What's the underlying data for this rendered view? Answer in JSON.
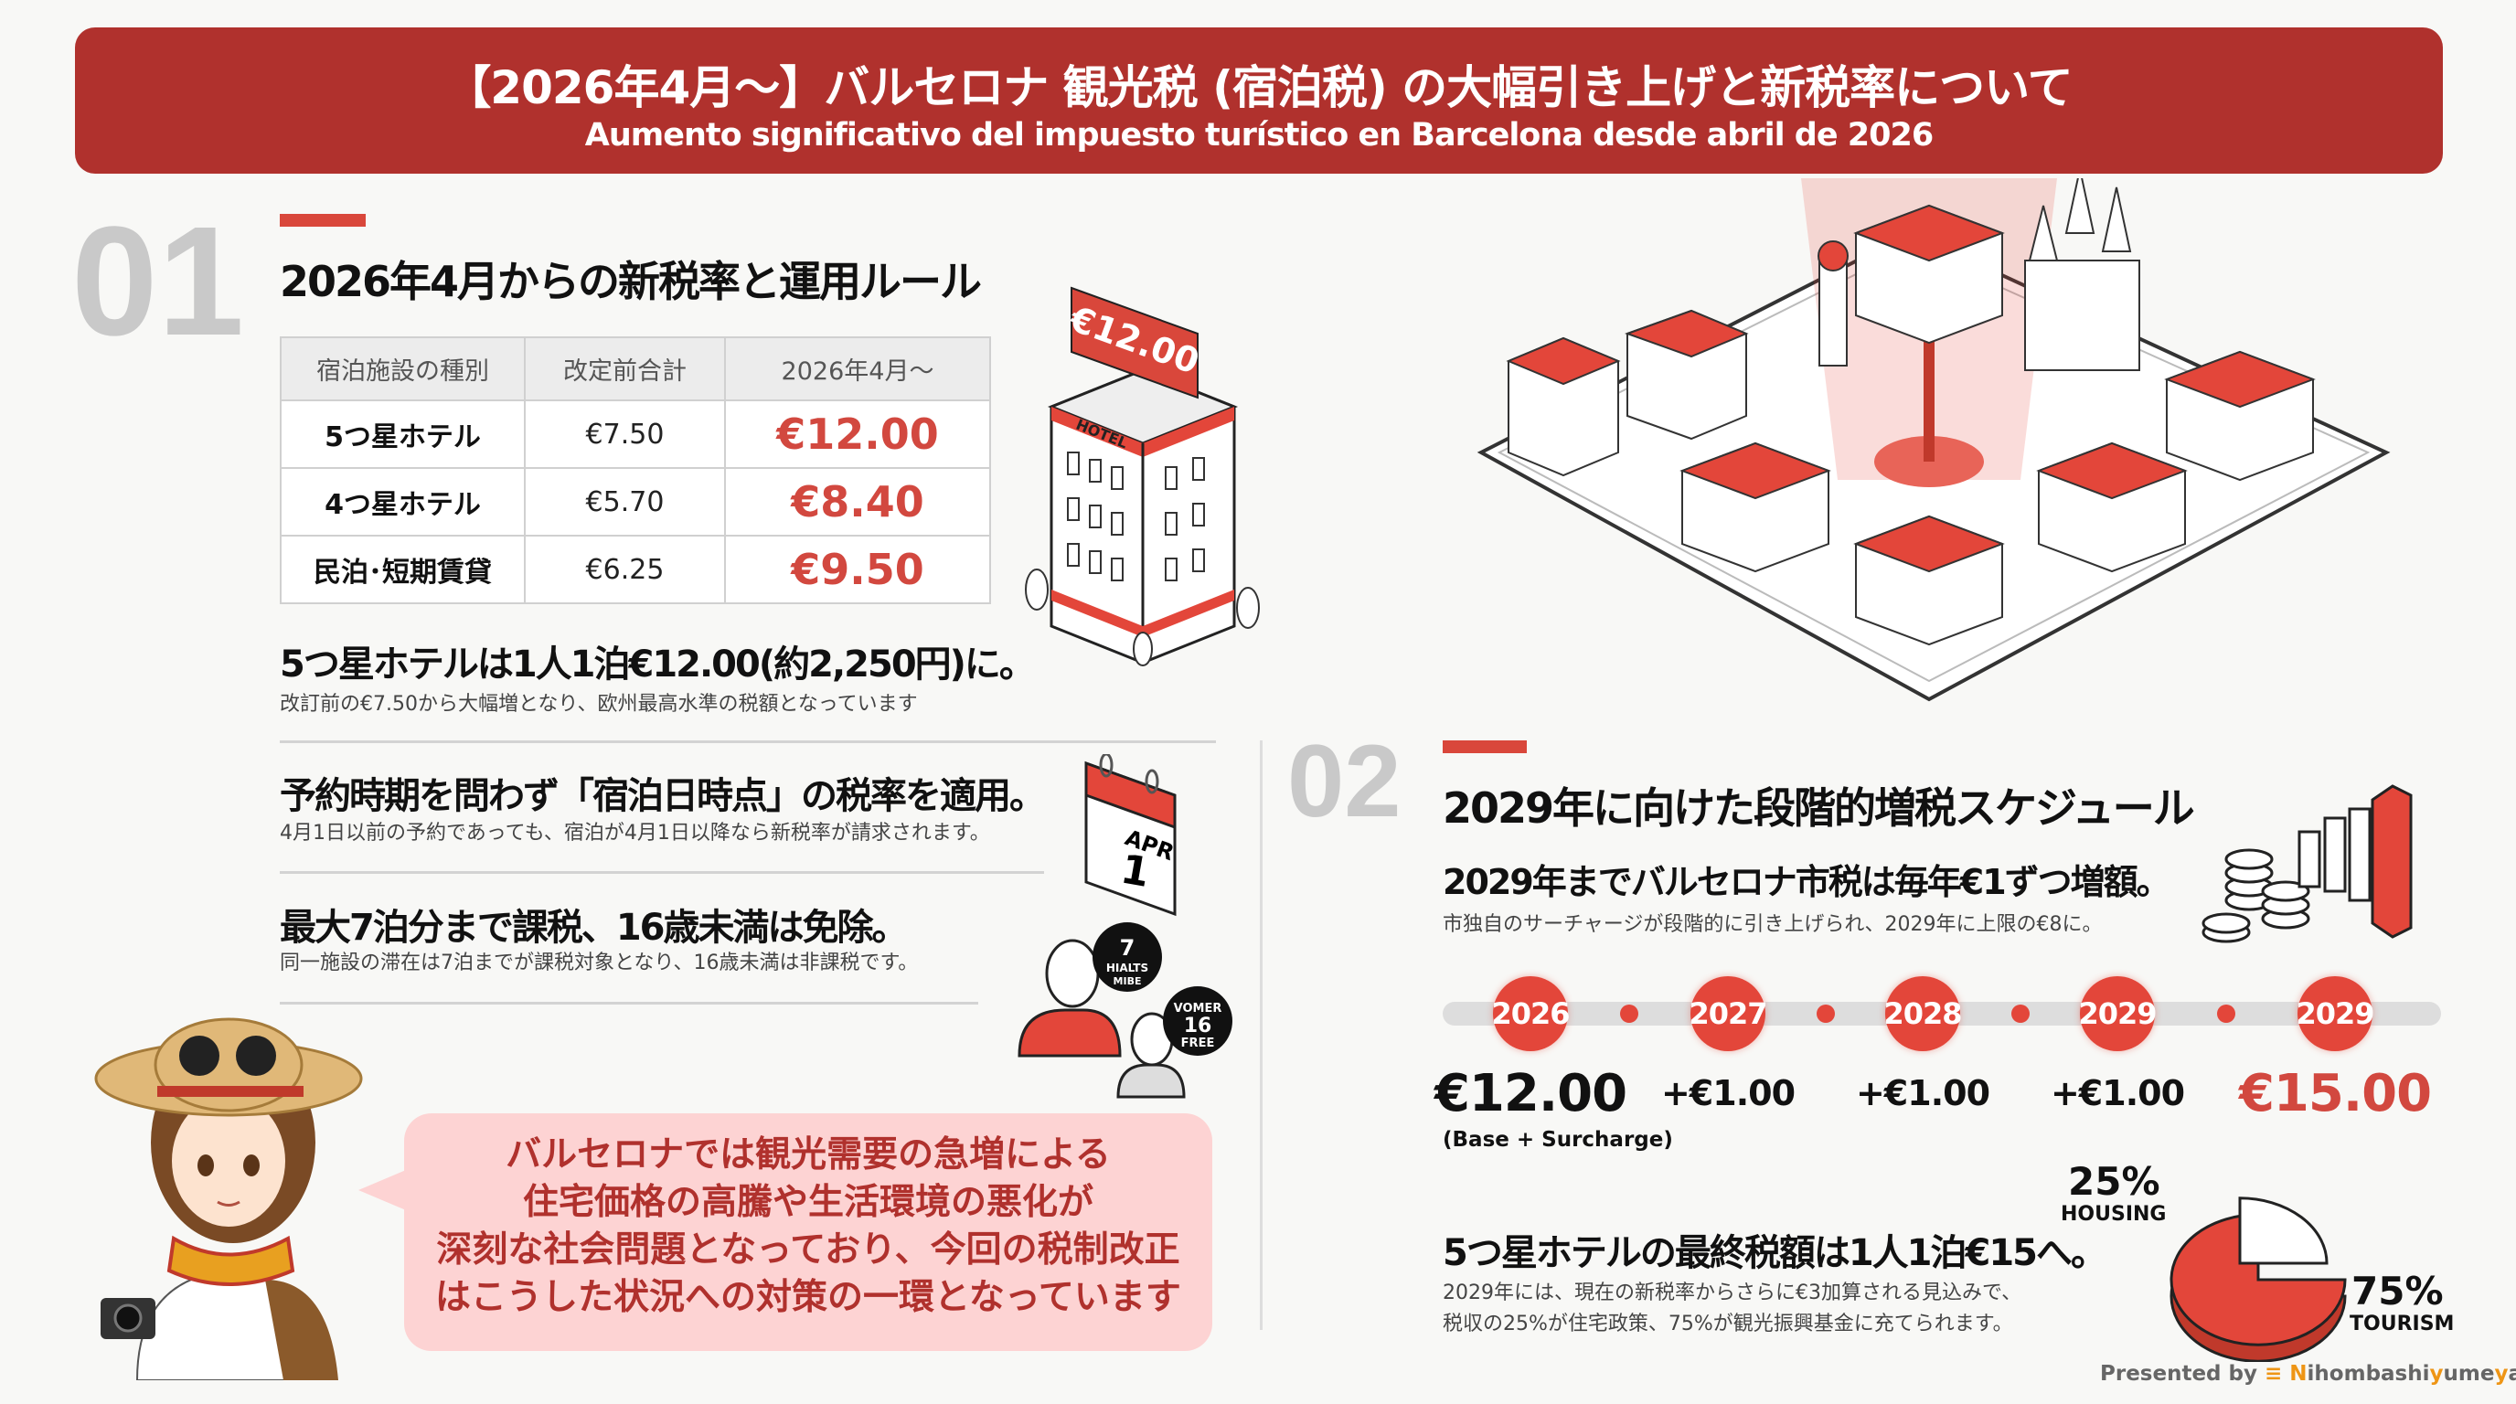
{
  "header": {
    "title": "【2026年4月〜】バルセロナ 観光税 (宿泊税) の大幅引き上げと新税率について",
    "subtitle": "Aumento significativo del impuesto turístico en Barcelona desde abril de 2026"
  },
  "section1": {
    "number": "01",
    "title": "2026年4月からの新税率と運用ルール",
    "table": {
      "headers": [
        "宿泊施設の種別",
        "改定前合計",
        "2026年4月〜"
      ],
      "rows": [
        [
          "5つ星ホテル",
          "€7.50",
          "€12.00"
        ],
        [
          "4つ星ホテル",
          "€5.70",
          "€8.40"
        ],
        [
          "民泊･短期賃貸",
          "€6.25",
          "€9.50"
        ]
      ]
    },
    "hotel_sign": "€12.00",
    "hotel_label": "HOTEL",
    "points": [
      {
        "title": "5つ星ホテルは1人1泊€12.00(約2,250円)に。",
        "desc": "改訂前の€7.50から大幅増となり、欧州最高水準の税額となっています"
      },
      {
        "title": "予約時期を問わず「宿泊日時点」の税率を適用。",
        "desc": "4月1日以前の予約であっても、宿泊が4月1日以降なら新税率が請求されます。"
      },
      {
        "title": "最大7泊分まで課税、16歳未満は免除。",
        "desc": "同一施設の滞在は7泊までが課税対象となり、16歳未満は非課税です。"
      }
    ],
    "calendar": {
      "month": "APR",
      "day": "1"
    },
    "badge_adult": {
      "num": "7",
      "l1": "HIALTS",
      "l2": "MIBE"
    },
    "badge_child": {
      "l1": "VOMER",
      "num": "16",
      "l2": "FREE"
    }
  },
  "bubble": {
    "lines": [
      "バルセロナでは観光需要の急増による",
      "住宅価格の高騰や生活環境の悪化が",
      "深刻な社会問題となっており、今回の税制改正",
      "はこうした状況への対策の一環となっています"
    ]
  },
  "section2": {
    "number": "02",
    "title": "2029年に向けた段階的増税スケジュール",
    "subtitle": "2029年までバルセロナ市税は毎年€1ずつ増額。",
    "subdesc": "市独自のサーチャージが段階的に引き上げられ、2029年に上限の€8に。",
    "timeline": [
      {
        "year": "2026",
        "value": "€12.00",
        "note": "(Base + Surcharge)"
      },
      {
        "year": "2027",
        "value": "+€1.00"
      },
      {
        "year": "2028",
        "value": "+€1.00"
      },
      {
        "year": "2029",
        "value": "+€1.00"
      },
      {
        "year": "2029",
        "value": "€15.00"
      }
    ],
    "final_title": "5つ星ホテルの最終税額は1人1泊€15へ。",
    "final_desc": [
      "2029年には、現在の新税率からさらに€3加算される見込みで、",
      "税収の25%が住宅政策、75%が観光振興基金に充てられます。"
    ],
    "pie": {
      "housing_pct": "25%",
      "housing_label": "HOUSING",
      "tourism_pct": "75%",
      "tourism_label": "TOURISM",
      "housing_value": 25,
      "tourism_value": 75
    }
  },
  "footer": {
    "prefix": "Presented by",
    "brand_parts": [
      "N",
      "ihombashi",
      "y",
      "ume",
      "y",
      "a"
    ]
  },
  "colors": {
    "header": "#b0312d",
    "accent": "#e3463a",
    "bubble": "#fdd3d3",
    "brand": "#ee9515"
  }
}
